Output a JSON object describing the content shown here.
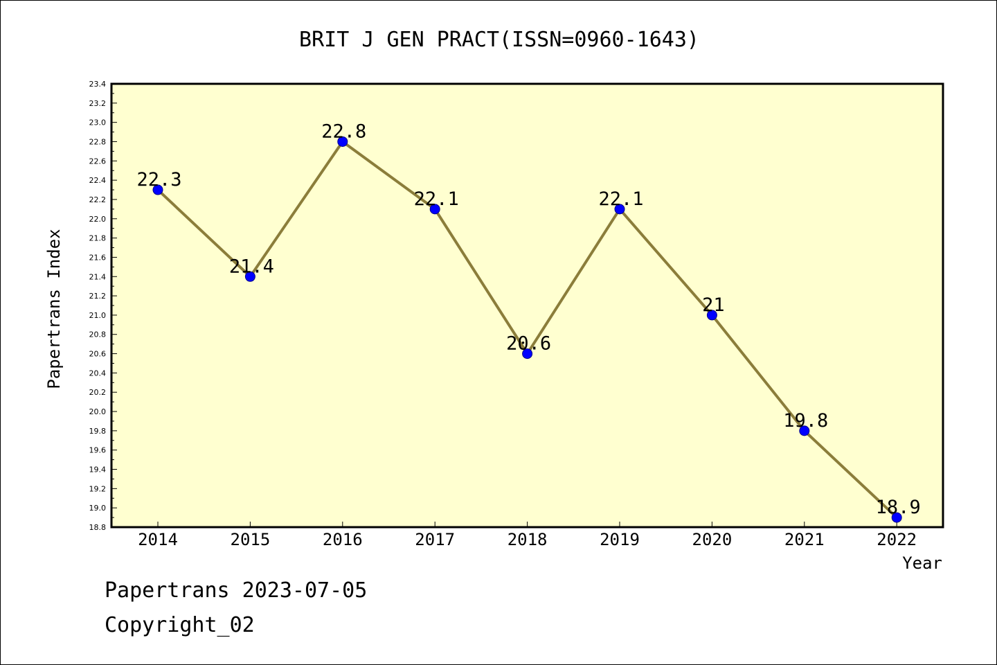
{
  "chart_data": {
    "type": "line",
    "title": "BRIT J GEN PRACT(ISSN=0960-1643)",
    "xlabel": "Year",
    "ylabel": "Papertrans Index",
    "categories": [
      "2014",
      "2015",
      "2016",
      "2017",
      "2018",
      "2019",
      "2020",
      "2021",
      "2022"
    ],
    "series": [
      {
        "values": [
          22.3,
          21.4,
          22.8,
          22.1,
          20.6,
          22.1,
          21.0,
          19.8,
          18.9
        ]
      }
    ],
    "data_labels": [
      "22.3",
      "21.4",
      "22.8",
      "22.1",
      "20.6",
      "22.1",
      "21",
      "19.8",
      "18.9"
    ],
    "ylim": [
      18.8,
      23.4
    ],
    "yticks": [
      "18.8",
      "19.0",
      "19.2",
      "19.4",
      "19.6",
      "19.8",
      "20.0",
      "20.2",
      "20.4",
      "20.6",
      "20.8",
      "21.0",
      "21.2",
      "21.4",
      "21.6",
      "21.8",
      "22.0",
      "22.2",
      "22.4",
      "22.6",
      "22.8",
      "23.0",
      "23.2",
      "23.4"
    ],
    "grid": false,
    "legend": "none",
    "colors": {
      "plot_background": "#ffffd0",
      "line": "#8b7d3a",
      "marker": "#0000ff"
    }
  },
  "footer": {
    "date_text": "Papertrans 2023-07-05",
    "copyright_text": "Copyright_02"
  }
}
